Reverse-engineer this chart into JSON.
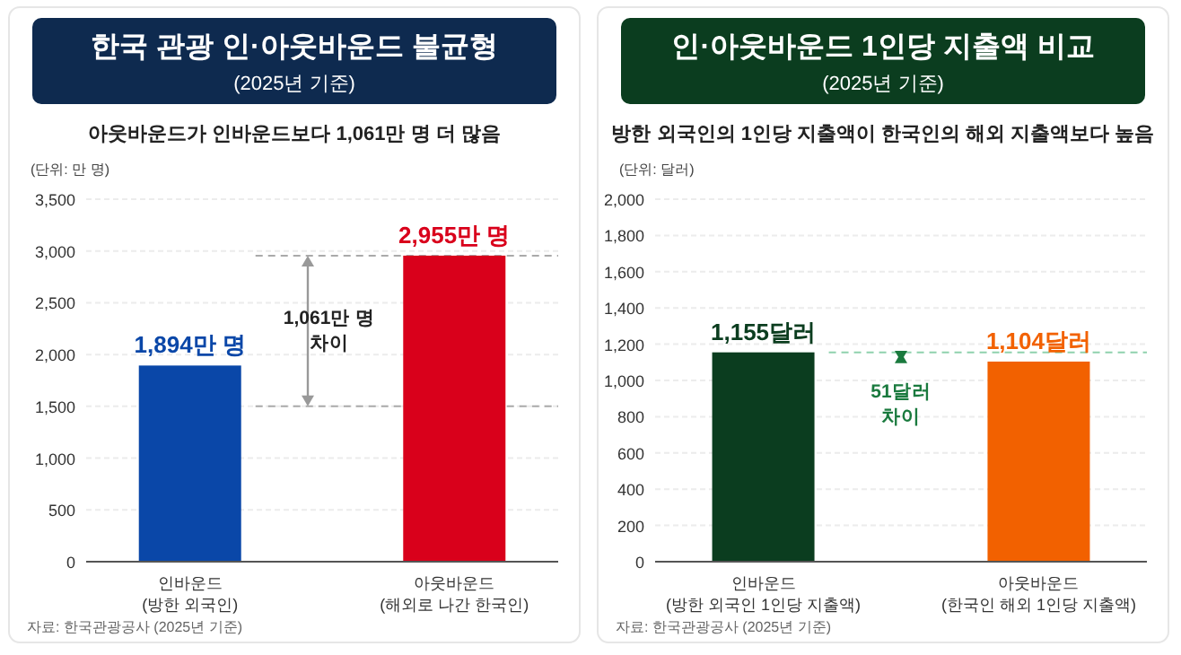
{
  "chart_data": [
    {
      "type": "bar",
      "title": "한국 관광 인·아웃바운드 불균형",
      "subtitle": "(2025년 기준)",
      "ylabel": "(단위: 만 명)",
      "annotations": [
        "아웃바운드가 인바운드보다 1,061만 명 더 많음",
        "1,061만 명\n차이",
        "자료: 한국관광공사 (2025년 기준)"
      ],
      "categories": [
        "인바운드\n(방한 외국인)",
        "아웃바운드\n(해외로 나간 한국인)"
      ],
      "values": [
        1894,
        2955
      ],
      "colors": [
        "#0a47a8",
        "#d9001b"
      ],
      "value_labels": [
        "1,894만 명",
        "2,955만 명"
      ],
      "ylim": [
        0,
        3500
      ],
      "yticks": [
        0,
        500,
        {
          "value": 1000,
          "label": "1,000"
        },
        {
          "value": 1500,
          "label": "1,500"
        },
        {
          "value": 2000,
          "label": "2,000"
        },
        {
          "value": 2500,
          "label": "2,500"
        },
        {
          "value": 3000,
          "label": "3,000"
        },
        {
          "value": 3500,
          "label": "3,500"
        }
      ],
      "grid": "y",
      "ref_lines": [
        {
          "axis": "y",
          "value": 2955,
          "color": "#aaaaaa",
          "line_style": "dashed"
        },
        {
          "axis": "y",
          "value": 1500,
          "color": "#aaaaaa",
          "line_style": "dashed"
        }
      ]
    },
    {
      "type": "bar",
      "title": "인·아웃바운드 1인당 지출액 비교",
      "subtitle": "(2025년 기준)",
      "ylabel": "(단위: 달러)",
      "annotations": [
        "방한 외국인의 1인당 지출액이 한국인의 해외 지출액보다 높음",
        "51달러\n차이",
        "자료: 한국관광공사 (2025년 기준)"
      ],
      "categories": [
        "인바운드\n(방한 외국인 1인당 지출액)",
        "아웃바운드\n(한국인 해외 1인당 지출액)"
      ],
      "values": [
        1155,
        1104
      ],
      "colors": [
        "#0b3d1f",
        "#f26100"
      ],
      "value_labels": [
        "1,155달러",
        "1,104달러"
      ],
      "ylim": [
        0,
        2000
      ],
      "yticks": [
        0,
        200,
        400,
        600,
        800,
        {
          "value": 1000,
          "label": "1,000"
        },
        {
          "value": 1200,
          "label": "1,200"
        },
        {
          "value": 1400,
          "label": "1,400"
        },
        {
          "value": 1600,
          "label": "1,600"
        },
        {
          "value": 1800,
          "label": "1,800"
        },
        {
          "value": 2000,
          "label": "2,000"
        }
      ],
      "grid": "y",
      "ref_lines": [
        {
          "axis": "y",
          "value": 1155,
          "color": "#8fd1ad",
          "line_style": "dashed"
        }
      ]
    }
  ]
}
